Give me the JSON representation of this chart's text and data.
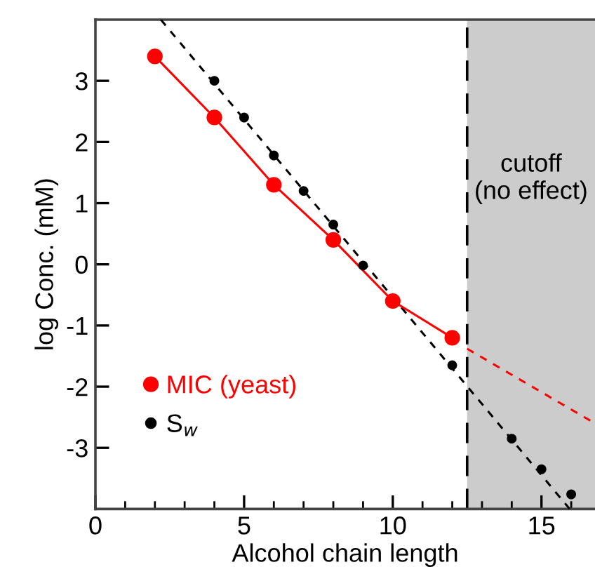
{
  "chart_data": {
    "type": "line",
    "xlabel": "Alcohol chain length",
    "ylabel": "log Conc. (mM)",
    "xlim": [
      0,
      16.8
    ],
    "ylim": [
      -4,
      4
    ],
    "xticks": [
      0,
      5,
      10,
      15
    ],
    "yticks": [
      -3,
      -2,
      -1,
      0,
      1,
      2,
      3
    ],
    "series": [
      {
        "name": "MIC (yeast)",
        "color": "#ff0000",
        "marker": "circle",
        "line_style": "solid",
        "x": [
          2,
          4,
          6,
          8,
          10,
          12
        ],
        "values": [
          3.4,
          2.4,
          1.3,
          0.4,
          -0.6,
          -1.2
        ]
      },
      {
        "name": "S$_{w}$",
        "type": "scatter",
        "color": "#000000",
        "marker": "circle",
        "x": [
          4,
          5,
          6,
          7,
          8,
          9,
          12,
          14,
          15,
          16
        ],
        "values": [
          3.0,
          2.4,
          1.78,
          1.2,
          0.65,
          -0.02,
          -1.65,
          -2.85,
          -3.35,
          -3.76
        ]
      },
      {
        "color": "#000000",
        "marker": "none",
        "line_style": "dashed",
        "x": [
          2.2,
          15.95
        ],
        "values": [
          4,
          -4
        ]
      },
      {
        "color": "#ff0000",
        "marker": "none",
        "line_style": "dashed",
        "x": [
          12.5,
          16.8
        ],
        "values": [
          -1.38,
          -2.6
        ]
      }
    ],
    "ref_lines": [
      {
        "axis": "x",
        "value": 12.5,
        "color": "#000000",
        "line_style": "dashed"
      }
    ],
    "bands": [
      {
        "axis": "x",
        "from": 12.5,
        "to": 16.8,
        "label": "cutoff\n(no effect)",
        "color": "#cccccc"
      }
    ],
    "legend": "bottom left",
    "grid": false
  }
}
